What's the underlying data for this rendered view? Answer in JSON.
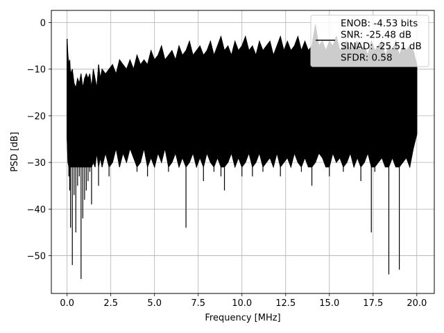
{
  "chart_data": {
    "type": "line",
    "title": "",
    "xlabel": "Frequency [MHz]",
    "ylabel": "PSD [dB]",
    "xlim": [
      -0.9,
      21
    ],
    "ylim": [
      -58.1,
      2.6
    ],
    "x_ticks": [
      0.0,
      2.5,
      5.0,
      7.5,
      10.0,
      12.5,
      15.0,
      17.5,
      20.0
    ],
    "x_tick_labels": [
      "0.0",
      "2.5",
      "5.0",
      "7.5",
      "10.0",
      "12.5",
      "15.0",
      "17.5",
      "20.0"
    ],
    "y_ticks": [
      0,
      -10,
      -20,
      -30,
      -40,
      -50
    ],
    "y_tick_labels": [
      "0",
      "−10",
      "−20",
      "−30",
      "−40",
      "−50"
    ],
    "grid": true,
    "legend_position": "top-right",
    "series_color": "#000000",
    "series": [
      {
        "name": "",
        "x": [
          0.0,
          0.05,
          0.1,
          0.15,
          0.2,
          0.3,
          0.4,
          0.5,
          0.6,
          0.7,
          0.8,
          0.9,
          1.0,
          1.1,
          1.2,
          1.3,
          1.4,
          1.5,
          1.6,
          1.7,
          1.8,
          1.9,
          2.0,
          2.2,
          2.4,
          2.6,
          2.8,
          3.0,
          3.2,
          3.4,
          3.6,
          3.8,
          4.0,
          4.2,
          4.4,
          4.6,
          4.8,
          5.0,
          5.2,
          5.4,
          5.6,
          5.8,
          6.0,
          6.2,
          6.4,
          6.6,
          6.8,
          7.0,
          7.2,
          7.4,
          7.6,
          7.8,
          8.0,
          8.2,
          8.4,
          8.6,
          8.8,
          9.0,
          9.2,
          9.4,
          9.6,
          9.8,
          10.0,
          10.2,
          10.4,
          10.6,
          10.8,
          11.0,
          11.2,
          11.4,
          11.6,
          11.8,
          12.0,
          12.2,
          12.4,
          12.6,
          12.8,
          13.0,
          13.2,
          13.4,
          13.6,
          13.8,
          14.0,
          14.2,
          14.4,
          14.6,
          14.8,
          15.0,
          15.2,
          15.4,
          15.6,
          15.8,
          16.0,
          16.2,
          16.4,
          16.6,
          16.8,
          17.0,
          17.2,
          17.4,
          17.6,
          17.8,
          18.0,
          18.2,
          18.4,
          18.6,
          18.8,
          19.0,
          19.2,
          19.4,
          19.6,
          19.8,
          20.0
        ],
        "upper": [
          -3.5,
          -7,
          -9,
          -8,
          -11,
          -10,
          -13,
          -14,
          -12,
          -13,
          -11,
          -14,
          -12,
          -11,
          -12,
          -11,
          -14,
          -10,
          -12,
          -14,
          -9,
          -12,
          -10,
          -11,
          -10,
          -9,
          -11,
          -8,
          -9,
          -10,
          -8,
          -10,
          -7,
          -9,
          -8,
          -9,
          -6,
          -8,
          -7,
          -5,
          -8,
          -7,
          -6,
          -8,
          -5,
          -7,
          -6,
          -4,
          -7,
          -6,
          -5,
          -7,
          -6,
          -4,
          -7,
          -5,
          -3,
          -6,
          -5,
          -7,
          -4,
          -6,
          -5,
          -3,
          -6,
          -5,
          -7,
          -4,
          -6,
          -5,
          -4,
          -7,
          -5,
          -3,
          -6,
          -4,
          -6,
          -5,
          -3,
          -6,
          -4,
          -6,
          -5,
          -0.5,
          -5,
          -4,
          -6,
          -4,
          -5,
          -3,
          -6,
          -5,
          -4,
          -6,
          -5,
          -4,
          -6,
          -5,
          -7,
          -4,
          -6,
          -5,
          -4,
          -7,
          -5,
          -6,
          -4,
          -7,
          -5,
          -6,
          -5,
          -6,
          -9
        ],
        "lower": [
          -25,
          -30,
          -33,
          -36,
          -44,
          -52,
          -37,
          -45,
          -35,
          -33,
          -55,
          -42,
          -38,
          -36,
          -34,
          -32,
          -39,
          -30,
          -31,
          -28,
          -35,
          -29,
          -31,
          -28,
          -33,
          -30,
          -27,
          -31,
          -28,
          -30,
          -27,
          -29,
          -32,
          -30,
          -27,
          -33,
          -29,
          -31,
          -28,
          -30,
          -27,
          -32,
          -30,
          -28,
          -31,
          -29,
          -44,
          -30,
          -28,
          -31,
          -29,
          -34,
          -28,
          -30,
          -32,
          -29,
          -33,
          -36,
          -30,
          -28,
          -31,
          -29,
          -33,
          -30,
          -28,
          -33,
          -30,
          -28,
          -32,
          -30,
          -29,
          -31,
          -28,
          -33,
          -30,
          -29,
          -31,
          -28,
          -30,
          -32,
          -29,
          -31,
          -35,
          -30,
          -28,
          -29,
          -31,
          -33,
          -28,
          -30,
          -29,
          -32,
          -30,
          -28,
          -31,
          -29,
          -34,
          -30,
          -28,
          -45,
          -32,
          -30,
          -29,
          -31,
          -54,
          -29,
          -31,
          -53,
          -30,
          -29,
          -31,
          -27,
          -24
        ],
        "fill_color": "#000000"
      }
    ],
    "legend": {
      "entries": [
        "ENOB: -4.53 bits",
        "SNR: -25.48 dB",
        "SINAD: -25.51 dB",
        "SFDR: 0.58"
      ]
    }
  }
}
